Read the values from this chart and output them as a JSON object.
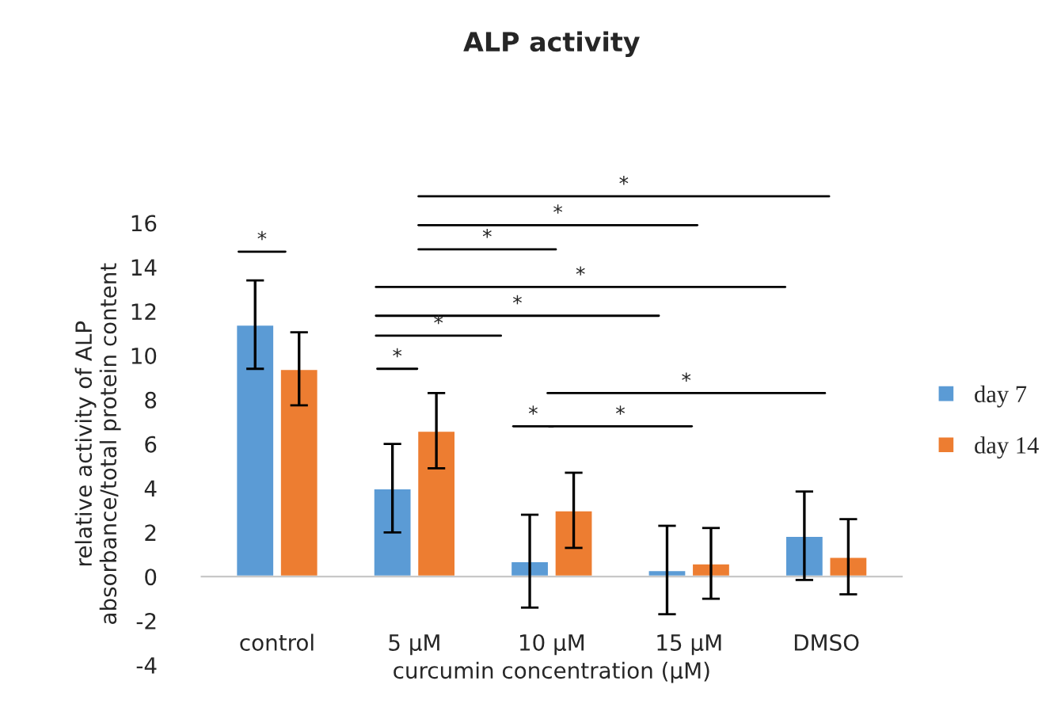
{
  "chart_data": {
    "type": "bar",
    "title": "ALP activity",
    "xlabel": "curcumin concentration (µM)",
    "ylabel": "relative activity of ALP\nabsorbance/total protein content",
    "categories": [
      "control",
      "5 µM",
      "10 µM",
      "15 µM",
      "DMSO"
    ],
    "series": [
      {
        "name": "day 7",
        "color": "#5b9bd5",
        "values": [
          11.4,
          4.0,
          0.7,
          0.3,
          1.85
        ],
        "errors": [
          2.0,
          2.0,
          2.1,
          2.0,
          2.0
        ]
      },
      {
        "name": "day 14",
        "color": "#ed7d31",
        "values": [
          9.4,
          6.6,
          3.0,
          0.6,
          0.9
        ],
        "errors": [
          1.65,
          1.7,
          1.7,
          1.6,
          1.7
        ]
      }
    ],
    "ylim": [
      -4,
      16
    ],
    "yticks": [
      -4,
      -2,
      0,
      2,
      4,
      6,
      8,
      10,
      12,
      14,
      16
    ],
    "annotations": [
      "*",
      "*",
      "*",
      "*",
      "*",
      "*",
      "*",
      "*",
      "*",
      "*",
      "*"
    ],
    "legend": "right"
  }
}
